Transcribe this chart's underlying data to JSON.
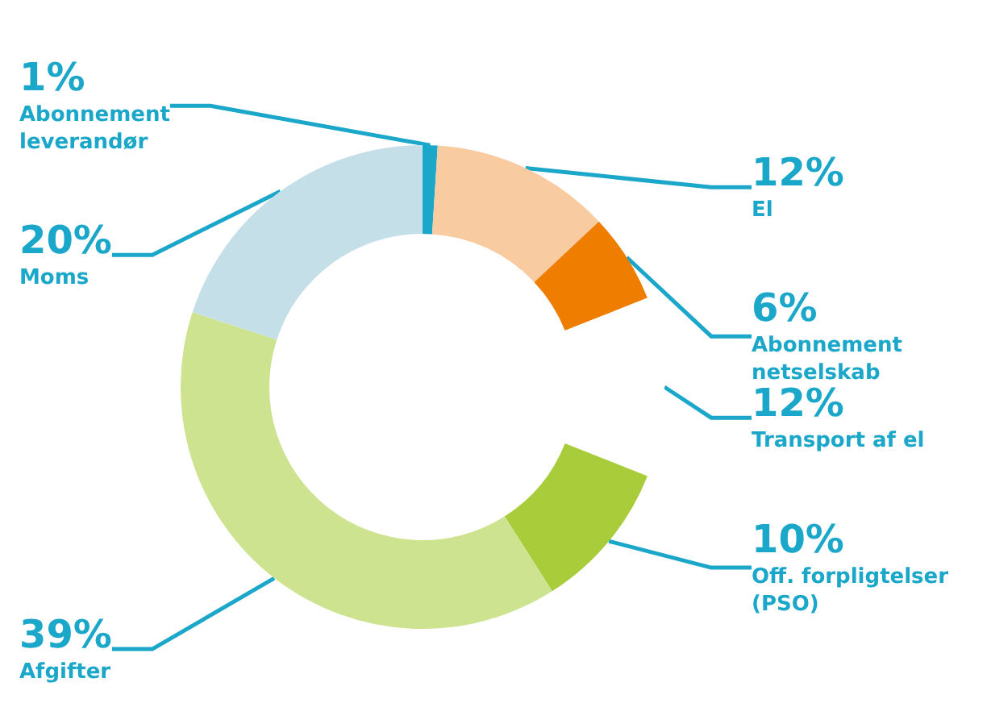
{
  "chart_data": {
    "type": "donut",
    "categories": [
      "Abonnement leverandør",
      "El",
      "Abonnement netselskab",
      "Transport af el",
      "Off. forpligtelser (PSO)",
      "Afgifter",
      "Moms"
    ],
    "values": [
      1,
      12,
      6,
      12,
      10,
      39,
      20
    ],
    "colors": [
      "#1aa7c9",
      "#f9cba0",
      "#ee7d00",
      "#ffffff",
      "#a8cc3a",
      "#cde38f",
      "#c5dfe9"
    ],
    "value_labels": [
      "1%",
      "12%",
      "6%",
      "12%",
      "10%",
      "39%",
      "20%"
    ],
    "legend": false
  }
}
